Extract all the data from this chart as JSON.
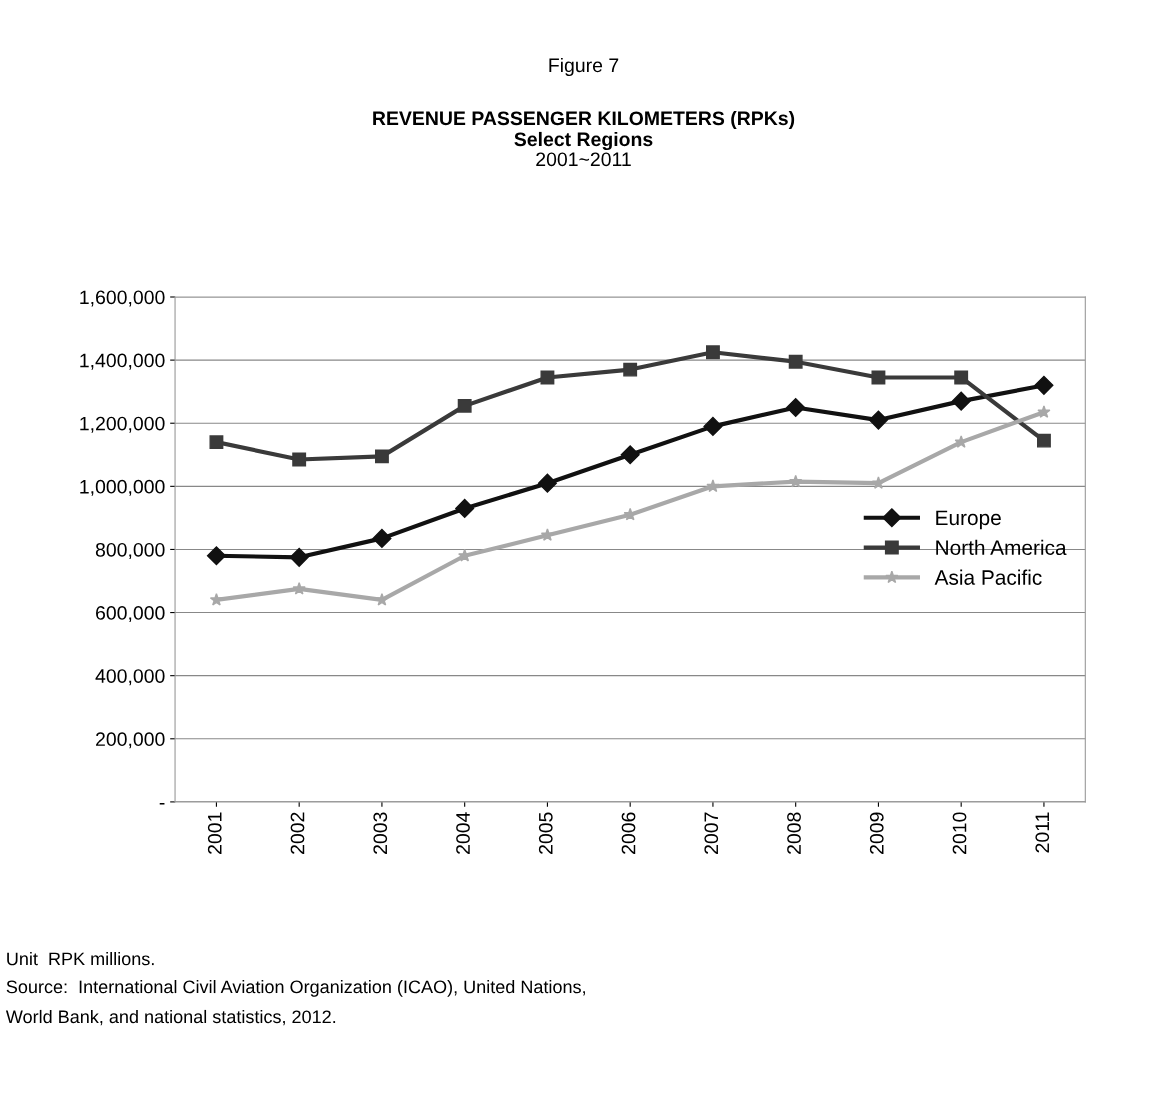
{
  "chart_data": {
    "type": "line",
    "title": "REVENUE PASSENGER KILOMETERS (RPKs)",
    "subtitle": "Select Regions",
    "annotations": [
      "Figure 7",
      "2001~2011",
      "Unit  RPK millions.",
      "Source:  International Civil Aviation Organization (ICAO), United Nations,\nWorld Bank, and national statistics, 2012."
    ],
    "categories": [
      "2001",
      "2002",
      "2003",
      "2004",
      "2005",
      "2006",
      "2007",
      "2008",
      "2009",
      "2010",
      "2011"
    ],
    "series": [
      {
        "name": "Europe",
        "color": "#111111",
        "marker": "diamond",
        "values": [
          780000,
          775000,
          835000,
          930000,
          1010000,
          1100000,
          1190000,
          1250000,
          1210000,
          1270000,
          1320000
        ]
      },
      {
        "name": "North America",
        "color": "#3a3a3a",
        "marker": "square",
        "values": [
          1140000,
          1085000,
          1095000,
          1255000,
          1345000,
          1370000,
          1425000,
          1395000,
          1345000,
          1345000,
          1145000
        ]
      },
      {
        "name": "Asia Pacific",
        "color": "#a8a8a8",
        "marker": "star",
        "values": [
          640000,
          675000,
          640000,
          780000,
          845000,
          910000,
          1000000,
          1015000,
          1010000,
          1140000,
          1235000
        ]
      }
    ],
    "ylim": [
      0,
      1600000
    ],
    "yticks": [
      {
        "value": 0,
        "label": "-"
      },
      {
        "value": 200000,
        "label": "200,000"
      },
      {
        "value": 400000,
        "label": "400,000"
      },
      {
        "value": 600000,
        "label": "600,000"
      },
      {
        "value": 800000,
        "label": "800,000"
      },
      {
        "value": 1000000,
        "label": "1,000,000"
      },
      {
        "value": 1200000,
        "label": "1,200,000"
      },
      {
        "value": 1400000,
        "label": "1,400,000"
      },
      {
        "value": 1600000,
        "label": "1,600,000"
      }
    ],
    "grid": "y",
    "legend": "center right",
    "line_style": "solid"
  }
}
